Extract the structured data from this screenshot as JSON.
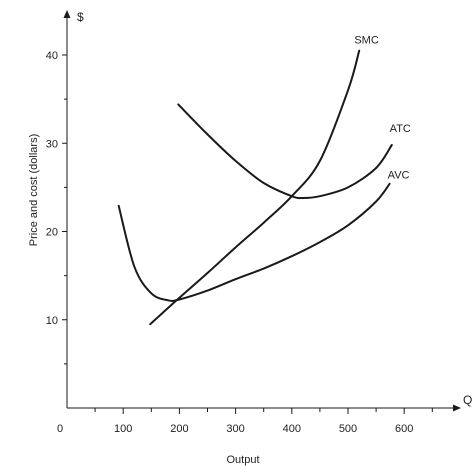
{
  "chart_data": {
    "type": "line",
    "xlabel": "Output",
    "ylabel": "Price and cost (dollars)",
    "x_axis_symbol": "Q",
    "y_axis_symbol": "$",
    "xlim": [
      0,
      700
    ],
    "ylim": [
      0,
      45
    ],
    "x_ticks": [
      0,
      100,
      200,
      300,
      400,
      500,
      600
    ],
    "x_minor_ticks": [
      50,
      150,
      250,
      350,
      450,
      550,
      650
    ],
    "y_ticks": [
      10,
      20,
      30,
      40
    ],
    "y_minor_ticks": [
      5,
      15,
      25,
      35
    ],
    "grid": false,
    "legend": "none",
    "line_color": "#1a1a1a",
    "series": [
      {
        "name": "SMC",
        "x": [
          148,
          200,
          250,
          300,
          350,
          400,
          450,
          500,
          520
        ],
        "y": [
          9.5,
          12.5,
          15.3,
          18.2,
          21.0,
          24.0,
          28.0,
          36.0,
          40.5
        ]
      },
      {
        "name": "ATC",
        "x": [
          198,
          250,
          300,
          350,
          400,
          420,
          450,
          500,
          550,
          578
        ],
        "y": [
          34.4,
          31.0,
          28.0,
          25.5,
          24.0,
          23.8,
          24.0,
          25.0,
          27.2,
          29.8
        ]
      },
      {
        "name": "AVC",
        "x": [
          92,
          120,
          150,
          180,
          200,
          250,
          300,
          350,
          400,
          450,
          500,
          550,
          574
        ],
        "y": [
          22.9,
          16.0,
          13.0,
          12.2,
          12.3,
          13.3,
          14.6,
          15.8,
          17.2,
          18.8,
          20.7,
          23.4,
          25.4
        ]
      }
    ],
    "curve_labels": [
      {
        "series": "SMC",
        "text": "SMC",
        "x": 533,
        "y": 41.3
      },
      {
        "series": "ATC",
        "text": "ATC",
        "x": 593,
        "y": 31.3
      },
      {
        "series": "AVC",
        "text": "AVC",
        "x": 590,
        "y": 26.0
      }
    ]
  }
}
